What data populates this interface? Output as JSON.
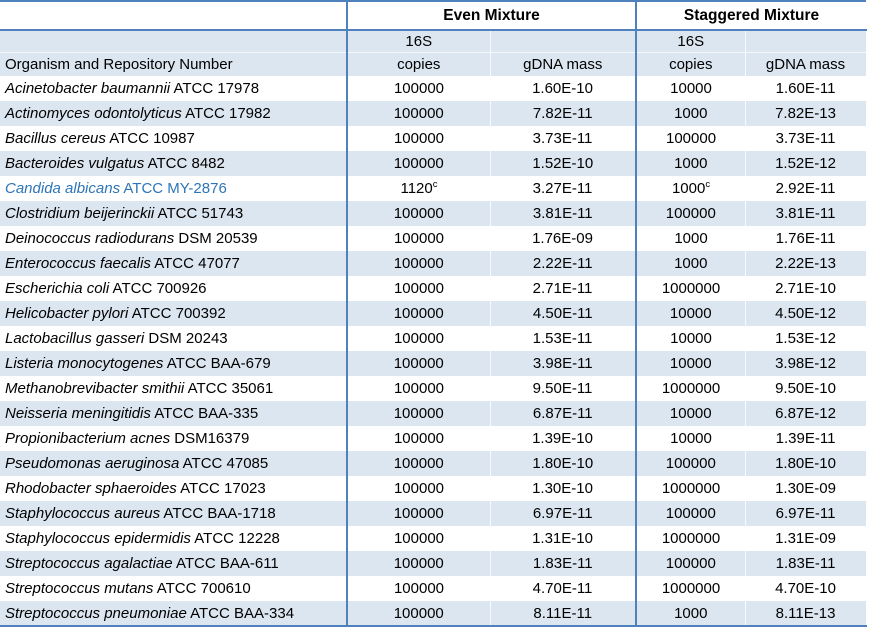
{
  "table": {
    "header": {
      "even_label": "Even Mixture",
      "staggered_label": "Staggered Mixture",
      "s16": "16S",
      "copies": "copies",
      "gdna": "gDNA mass",
      "organism": "Organism and Repository Number"
    },
    "footnote_marker": "c",
    "colors": {
      "accent_border": "#4F81BD",
      "row_shade": "#DCE6F1",
      "highlight_text": "#2E75B6"
    },
    "rows": [
      {
        "organism": "Acinetobacter baumannii",
        "strain": "ATCC 17978",
        "even_copies": "100000",
        "even_copies_sup": "",
        "even_mass": "1.60E-10",
        "stag_copies": "10000",
        "stag_copies_sup": "",
        "stag_mass": "1.60E-11",
        "highlight": false
      },
      {
        "organism": "Actinomyces odontolyticus",
        "strain": "ATCC 17982",
        "even_copies": "100000",
        "even_copies_sup": "",
        "even_mass": "7.82E-11",
        "stag_copies": "1000",
        "stag_copies_sup": "",
        "stag_mass": "7.82E-13",
        "highlight": false
      },
      {
        "organism": "Bacillus cereus",
        "strain": "ATCC 10987",
        "even_copies": "100000",
        "even_copies_sup": "",
        "even_mass": "3.73E-11",
        "stag_copies": "100000",
        "stag_copies_sup": "",
        "stag_mass": "3.73E-11",
        "highlight": false
      },
      {
        "organism": "Bacteroides vulgatus",
        "strain": "ATCC 8482",
        "even_copies": "100000",
        "even_copies_sup": "",
        "even_mass": "1.52E-10",
        "stag_copies": "1000",
        "stag_copies_sup": "",
        "stag_mass": "1.52E-12",
        "highlight": false
      },
      {
        "organism": "Candida albicans",
        "strain": "ATCC MY-2876",
        "even_copies": "1120",
        "even_copies_sup": "c",
        "even_mass": "3.27E-11",
        "stag_copies": "1000",
        "stag_copies_sup": "c",
        "stag_mass": "2.92E-11",
        "highlight": true
      },
      {
        "organism": "Clostridium beijerinckii",
        "strain": "ATCC 51743",
        "even_copies": "100000",
        "even_copies_sup": "",
        "even_mass": "3.81E-11",
        "stag_copies": "100000",
        "stag_copies_sup": "",
        "stag_mass": "3.81E-11",
        "highlight": false
      },
      {
        "organism": "Deinococcus radiodurans",
        "strain": "DSM 20539",
        "even_copies": "100000",
        "even_copies_sup": "",
        "even_mass": "1.76E-09",
        "stag_copies": "1000",
        "stag_copies_sup": "",
        "stag_mass": "1.76E-11",
        "highlight": false
      },
      {
        "organism": "Enterococcus faecalis",
        "strain": "ATCC 47077",
        "even_copies": "100000",
        "even_copies_sup": "",
        "even_mass": "2.22E-11",
        "stag_copies": "1000",
        "stag_copies_sup": "",
        "stag_mass": "2.22E-13",
        "highlight": false
      },
      {
        "organism": "Escherichia coli",
        "strain": "ATCC 700926",
        "even_copies": "100000",
        "even_copies_sup": "",
        "even_mass": "2.71E-11",
        "stag_copies": "1000000",
        "stag_copies_sup": "",
        "stag_mass": "2.71E-10",
        "highlight": false
      },
      {
        "organism": "Helicobacter pylori",
        "strain": "ATCC 700392",
        "even_copies": "100000",
        "even_copies_sup": "",
        "even_mass": "4.50E-11",
        "stag_copies": "10000",
        "stag_copies_sup": "",
        "stag_mass": "4.50E-12",
        "highlight": false
      },
      {
        "organism": "Lactobacillus gasseri",
        "strain": "DSM 20243",
        "even_copies": "100000",
        "even_copies_sup": "",
        "even_mass": "1.53E-11",
        "stag_copies": "10000",
        "stag_copies_sup": "",
        "stag_mass": "1.53E-12",
        "highlight": false
      },
      {
        "organism": "Listeria monocytogenes",
        "strain": "ATCC BAA-679",
        "even_copies": "100000",
        "even_copies_sup": "",
        "even_mass": "3.98E-11",
        "stag_copies": "10000",
        "stag_copies_sup": "",
        "stag_mass": "3.98E-12",
        "highlight": false
      },
      {
        "organism": "Methanobrevibacter smithii",
        "strain": "ATCC 35061",
        "even_copies": "100000",
        "even_copies_sup": "",
        "even_mass": "9.50E-11",
        "stag_copies": "1000000",
        "stag_copies_sup": "",
        "stag_mass": "9.50E-10",
        "highlight": false
      },
      {
        "organism": "Neisseria meningitidis",
        "strain": "ATCC BAA-335",
        "even_copies": "100000",
        "even_copies_sup": "",
        "even_mass": "6.87E-11",
        "stag_copies": "10000",
        "stag_copies_sup": "",
        "stag_mass": "6.87E-12",
        "highlight": false
      },
      {
        "organism": "Propionibacterium acnes",
        "strain": "DSM16379",
        "even_copies": "100000",
        "even_copies_sup": "",
        "even_mass": "1.39E-10",
        "stag_copies": "10000",
        "stag_copies_sup": "",
        "stag_mass": "1.39E-11",
        "highlight": false
      },
      {
        "organism": "Pseudomonas aeruginosa",
        "strain": "ATCC 47085",
        "even_copies": "100000",
        "even_copies_sup": "",
        "even_mass": "1.80E-10",
        "stag_copies": "100000",
        "stag_copies_sup": "",
        "stag_mass": "1.80E-10",
        "highlight": false
      },
      {
        "organism": "Rhodobacter sphaeroides",
        "strain": "ATCC 17023",
        "even_copies": "100000",
        "even_copies_sup": "",
        "even_mass": "1.30E-10",
        "stag_copies": "1000000",
        "stag_copies_sup": "",
        "stag_mass": "1.30E-09",
        "highlight": false
      },
      {
        "organism": "Staphylococcus aureus",
        "strain": "ATCC BAA-1718",
        "even_copies": "100000",
        "even_copies_sup": "",
        "even_mass": "6.97E-11",
        "stag_copies": "100000",
        "stag_copies_sup": "",
        "stag_mass": "6.97E-11",
        "highlight": false
      },
      {
        "organism": "Staphylococcus epidermidis",
        "strain": "ATCC 12228",
        "even_copies": "100000",
        "even_copies_sup": "",
        "even_mass": "1.31E-10",
        "stag_copies": "1000000",
        "stag_copies_sup": "",
        "stag_mass": "1.31E-09",
        "highlight": false
      },
      {
        "organism": "Streptococcus agalactiae",
        "strain": "ATCC BAA-611",
        "even_copies": "100000",
        "even_copies_sup": "",
        "even_mass": "1.83E-11",
        "stag_copies": "100000",
        "stag_copies_sup": "",
        "stag_mass": "1.83E-11",
        "highlight": false
      },
      {
        "organism": "Streptococcus mutans",
        "strain": "ATCC 700610",
        "even_copies": "100000",
        "even_copies_sup": "",
        "even_mass": "4.70E-11",
        "stag_copies": "1000000",
        "stag_copies_sup": "",
        "stag_mass": "4.70E-10",
        "highlight": false
      },
      {
        "organism": "Streptococcus pneumoniae",
        "strain": "ATCC BAA-334",
        "even_copies": "100000",
        "even_copies_sup": "",
        "even_mass": "8.11E-11",
        "stag_copies": "1000",
        "stag_copies_sup": "",
        "stag_mass": "8.11E-13",
        "highlight": false
      }
    ]
  }
}
